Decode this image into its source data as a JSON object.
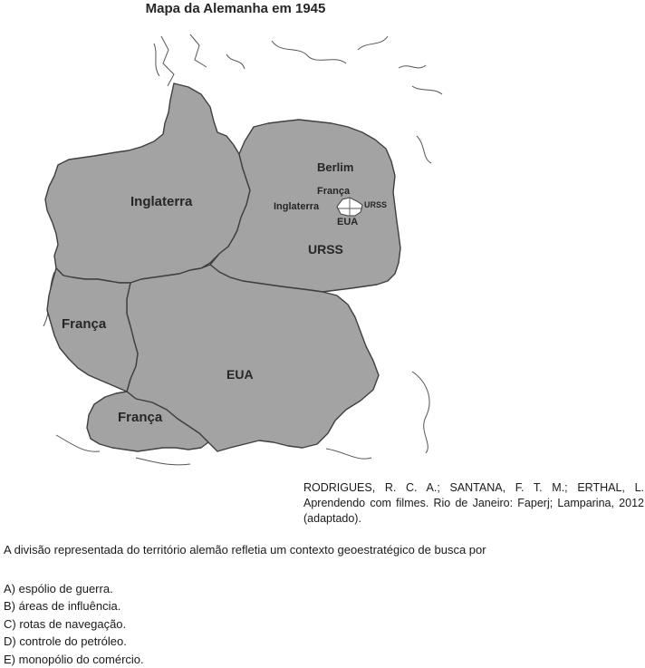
{
  "map": {
    "title": "Mapa da Alemanha em 1945",
    "zones": {
      "british": "Inglaterra",
      "soviet": "URSS",
      "american": "EUA",
      "french_north": "França",
      "french_south": "França"
    },
    "berlin": {
      "city": "Berlim",
      "france": "França",
      "britain": "Inglaterra",
      "ussr": "URSS",
      "usa": "EUA"
    }
  },
  "citation": "RODRIGUES, R. C. A.; SANTANA, F. T. M.; ERTHAL, L. Aprendendo com filmes. Rio de Janeiro: Faperj; Lamparina, 2012 (adaptado).",
  "question": "A divisão representada do território alemão refletia um contexto geoestratégico de busca por",
  "options": [
    "A) espólio de guerra.",
    "B) áreas de influência.",
    "C) rotas de navegação.",
    "D) controle do petróleo.",
    "E) monopólio do comércio."
  ]
}
